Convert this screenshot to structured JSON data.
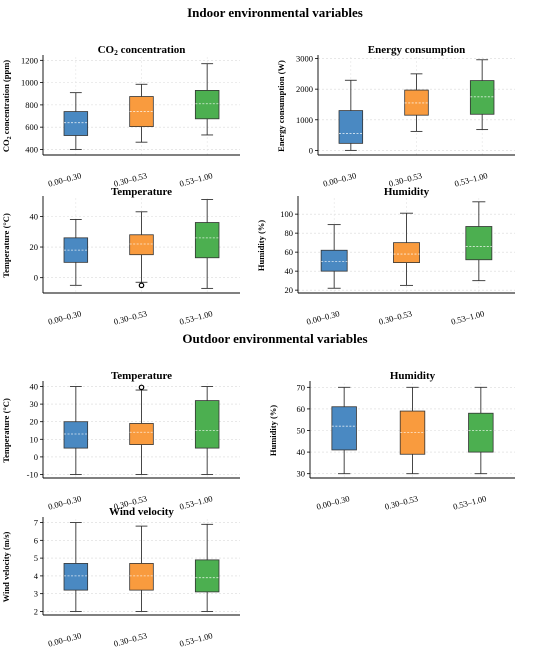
{
  "sections": {
    "indoor": "Indoor environmental variables",
    "outdoor": "Outdoor environmental variables"
  },
  "colors": {
    "blue": "#4a89c2",
    "orange": "#f99b3e",
    "green": "#4caf50"
  },
  "chart_data": [
    {
      "id": "co2",
      "type": "box",
      "title_main": "CO",
      "title_sub": "2",
      "title_rest": " concentration",
      "ylabel_main": "CO",
      "ylabel_sub": "2",
      "ylabel_rest": " concentration (ppm)",
      "ylim": [
        350,
        1230
      ],
      "yticks": [
        400,
        600,
        800,
        1000,
        1200
      ],
      "categories": [
        "0.00–0.30",
        "0.30–0.53",
        "0.53–1.00"
      ],
      "boxes": [
        {
          "min": 400,
          "q1": 525,
          "median": 640,
          "q3": 740,
          "max": 910
        },
        {
          "min": 465,
          "q1": 605,
          "median": 740,
          "q3": 875,
          "max": 985
        },
        {
          "min": 530,
          "q1": 675,
          "median": 810,
          "q3": 930,
          "max": 1170
        }
      ]
    },
    {
      "id": "energy",
      "type": "box",
      "title": "Energy consumption",
      "ylabel": "Energy consumption (W)",
      "ylim": [
        -150,
        3050
      ],
      "yticks": [
        0,
        1000,
        2000,
        3000
      ],
      "categories": [
        "0.00–0.30",
        "0.30–0.53",
        "0.53–1.00"
      ],
      "boxes": [
        {
          "min": 0,
          "q1": 230,
          "median": 550,
          "q3": 1300,
          "max": 2290
        },
        {
          "min": 620,
          "q1": 1150,
          "median": 1550,
          "q3": 1970,
          "max": 2500
        },
        {
          "min": 680,
          "q1": 1180,
          "median": 1750,
          "q3": 2280,
          "max": 2960
        }
      ]
    },
    {
      "id": "in-temp",
      "type": "box",
      "title": "Temperature",
      "ylabel": "Temperature (°C)",
      "ylim": [
        -10,
        52
      ],
      "yticks": [
        0,
        20,
        40
      ],
      "categories": [
        "0.00–0.30",
        "0.30–0.53",
        "0.53–1.00"
      ],
      "boxes": [
        {
          "min": -5,
          "q1": 10,
          "median": 18,
          "q3": 26,
          "max": 38
        },
        {
          "min": -3,
          "q1": 15,
          "median": 22,
          "q3": 28,
          "max": 43,
          "outliers": [
            -5
          ]
        },
        {
          "min": -7,
          "q1": 13,
          "median": 26,
          "q3": 36,
          "max": 51
        }
      ]
    },
    {
      "id": "in-hum",
      "type": "box",
      "title": "Humidity",
      "ylabel": "Humidity (%)",
      "ylim": [
        17,
        117
      ],
      "yticks": [
        20,
        40,
        60,
        80,
        100
      ],
      "categories": [
        "0.00–0.30",
        "0.30–0.53",
        "0.53–1.00"
      ],
      "boxes": [
        {
          "min": 22,
          "q1": 40,
          "median": 50,
          "q3": 62,
          "max": 89
        },
        {
          "min": 25,
          "q1": 49,
          "median": 58,
          "q3": 70,
          "max": 101
        },
        {
          "min": 30,
          "q1": 52,
          "median": 66,
          "q3": 87,
          "max": 113
        }
      ]
    },
    {
      "id": "out-temp",
      "type": "box",
      "title": "Temperature",
      "ylabel": "Temperature (°C)",
      "ylim": [
        -12,
        42
      ],
      "yticks": [
        -10,
        0,
        10,
        20,
        30,
        40
      ],
      "categories": [
        "0.00–0.30",
        "0.30–0.53",
        "0.53–1.00"
      ],
      "boxes": [
        {
          "min": -10,
          "q1": 5,
          "median": 13,
          "q3": 20,
          "max": 40
        },
        {
          "min": -10,
          "q1": 7,
          "median": 14,
          "q3": 19,
          "max": 38,
          "outliers": [
            39.5
          ]
        },
        {
          "min": -10,
          "q1": 5,
          "median": 15,
          "q3": 32,
          "max": 40
        }
      ]
    },
    {
      "id": "out-hum",
      "type": "box",
      "title": "Humidity",
      "ylabel": "Humidity (%)",
      "ylim": [
        28,
        72
      ],
      "yticks": [
        30,
        40,
        50,
        60,
        70
      ],
      "categories": [
        "0.00–0.30",
        "0.30–0.53",
        "0.53–1.00"
      ],
      "boxes": [
        {
          "min": 30,
          "q1": 41,
          "median": 52,
          "q3": 61,
          "max": 70
        },
        {
          "min": 30,
          "q1": 39,
          "median": 49,
          "q3": 59,
          "max": 70
        },
        {
          "min": 30,
          "q1": 40,
          "median": 50,
          "q3": 58,
          "max": 70
        }
      ]
    },
    {
      "id": "wind",
      "type": "box",
      "title": "Wind velocity",
      "ylabel": "Wind velocity (m/s)",
      "ylim": [
        1.8,
        7.2
      ],
      "yticks": [
        2,
        3,
        4,
        5,
        6,
        7
      ],
      "categories": [
        "0.00–0.30",
        "0.30–0.53",
        "0.53–1.00"
      ],
      "boxes": [
        {
          "min": 2,
          "q1": 3.2,
          "median": 4,
          "q3": 4.7,
          "max": 7
        },
        {
          "min": 2,
          "q1": 3.2,
          "median": 4,
          "q3": 4.7,
          "max": 6.8
        },
        {
          "min": 2,
          "q1": 3.1,
          "median": 3.9,
          "q3": 4.9,
          "max": 6.9
        }
      ]
    }
  ]
}
